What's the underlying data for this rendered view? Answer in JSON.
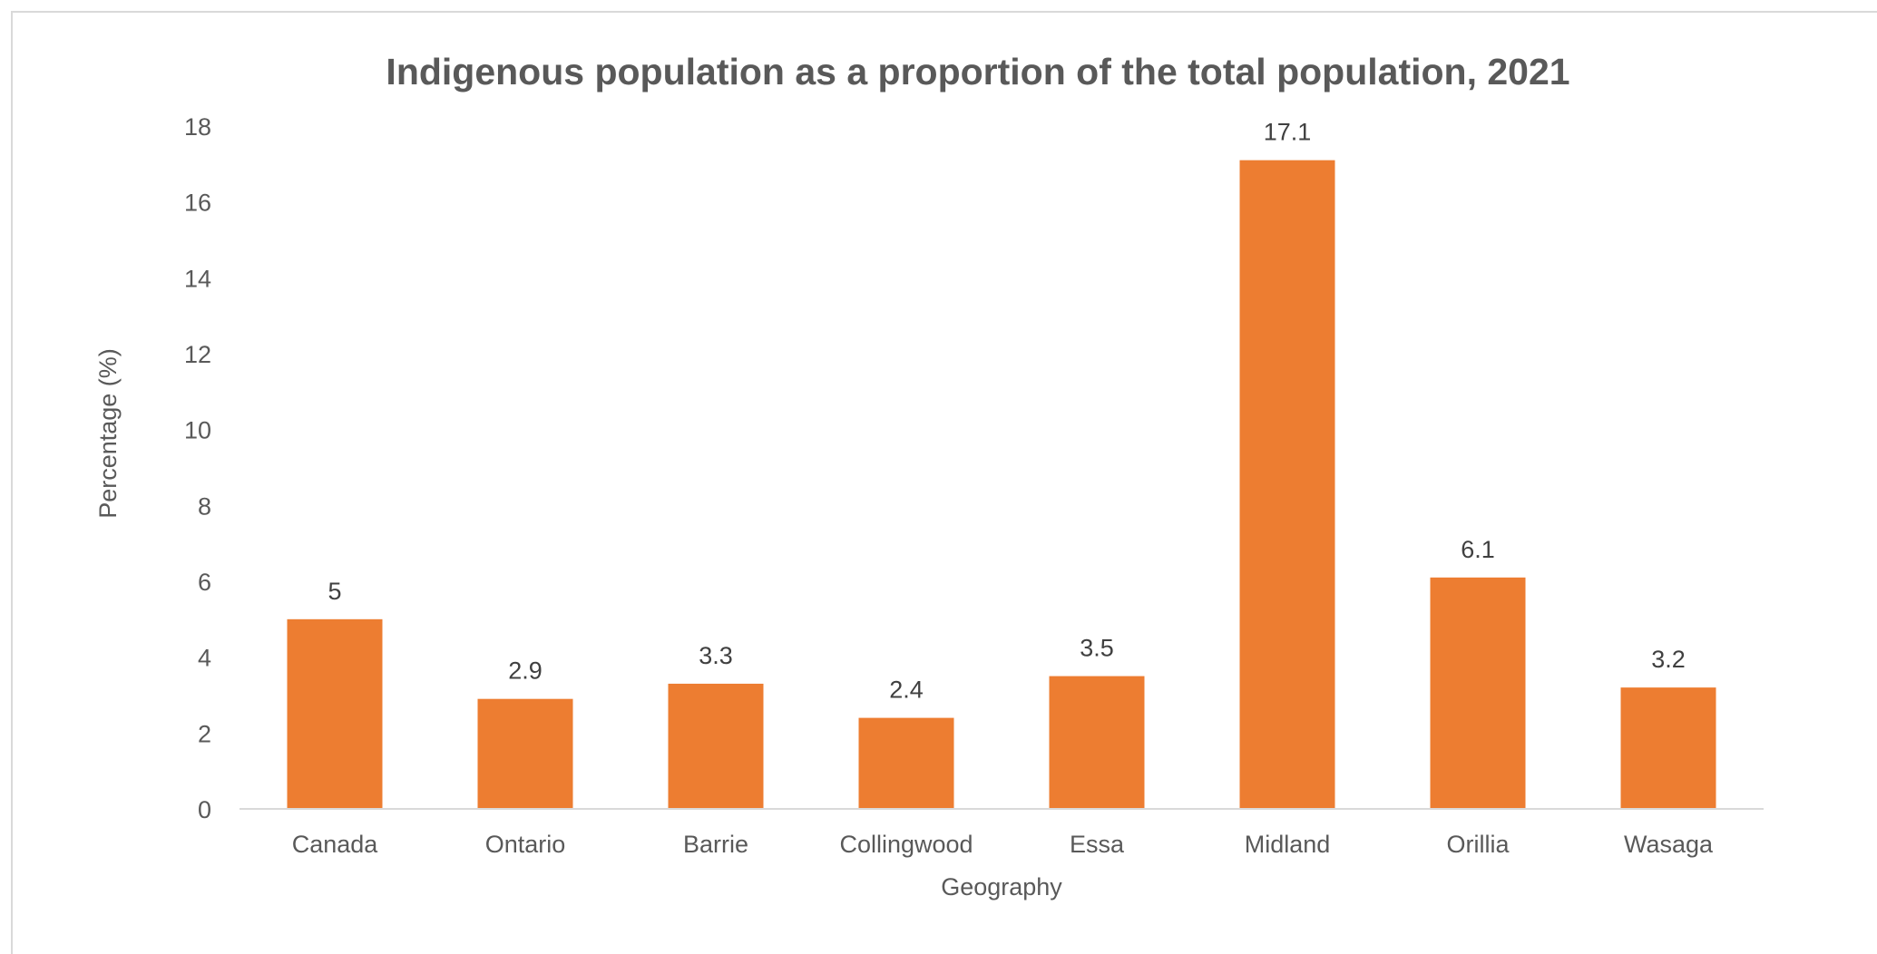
{
  "chart_data": {
    "type": "bar",
    "title": "Indigenous population as a proportion of the total population,  2021",
    "xlabel": "Geography",
    "ylabel": "Percentage (%)",
    "categories": [
      "Canada",
      "Ontario",
      "Barrie",
      "Collingwood",
      "Essa",
      "Midland",
      "Orillia",
      "Wasaga"
    ],
    "values": [
      5,
      2.9,
      3.3,
      2.4,
      3.5,
      17.1,
      6.1,
      3.2
    ],
    "data_labels": [
      "5",
      "2.9",
      "3.3",
      "2.4",
      "3.5",
      "17.1",
      "6.1",
      "3.2"
    ],
    "ylim": [
      0,
      18
    ],
    "yticks": [
      0,
      2,
      4,
      6,
      8,
      10,
      12,
      14,
      16,
      18
    ],
    "grid": false,
    "legend": "none",
    "bar_color": "#ED7D31"
  }
}
